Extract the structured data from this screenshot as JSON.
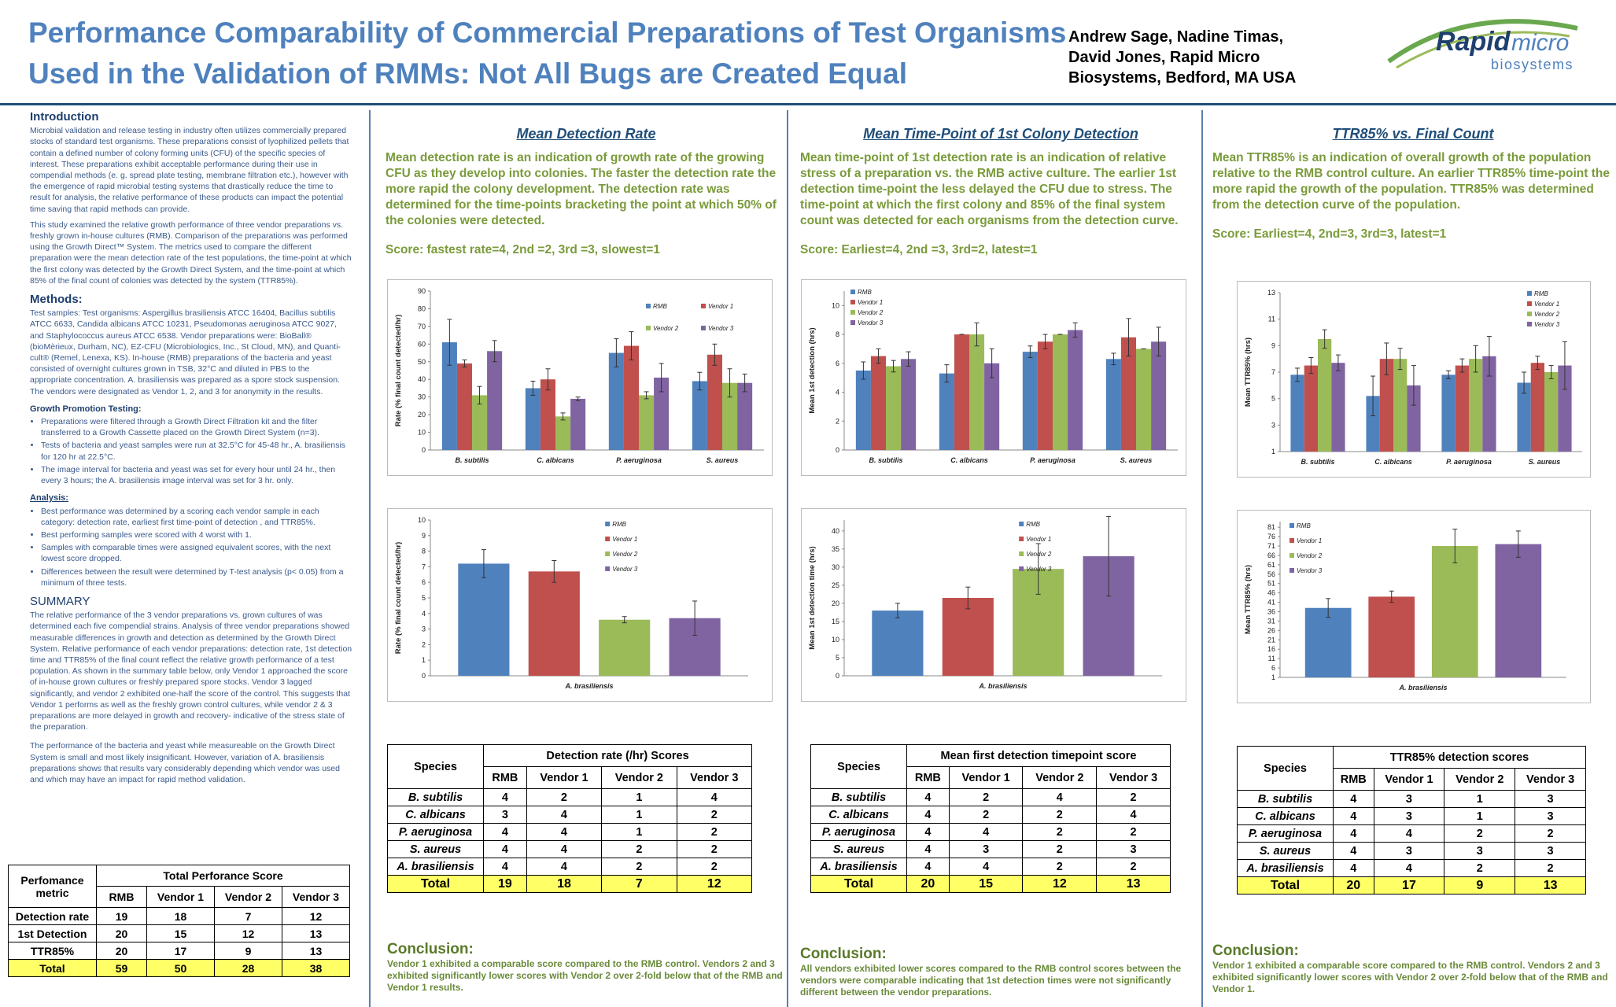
{
  "header": {
    "title_line1": "Performance Comparability of Commercial Preparations of Test Organisms",
    "title_line2": " Used in the Validation of RMMs: Not All Bugs are Created Equal",
    "authors_line1": "Andrew Sage,  Nadine Timas,",
    "authors_line2": "David Jones,  Rapid Micro",
    "authors_line3": "Biosystems, Bedford, MA USA",
    "logo_main": "Rapid",
    "logo_micro": "micro",
    "logo_sub": "biosystems"
  },
  "left": {
    "intro_h": "Introduction",
    "intro_p1": "Microbial validation and release testing in industry often utilizes commercially prepared stocks of standard test organisms. These preparations consist of lyophilized pellets that contain a defined number of colony forming units (CFU) of the specific species of interest. These preparations exhibit acceptable performance during their use in compendial methods (e. g. spread plate testing, membrane filtration etc.), however with the emergence of rapid microbial testing systems that drastically reduce the time to result for analysis, the relative performance of these products can impact the potential time saving that rapid methods can provide.",
    "intro_p2": "This study examined the relative growth performance of three vendor preparations vs. freshly grown in-house cultures (RMB). Comparison of the preparations was performed using the Growth Direct™ System. The metrics used to compare the different preparation were the mean detection rate of the test populations, the time-point at which the first colony was detected by the Growth Direct System, and the time-point at which 85% of the final count of colonies was detected by the system (TTR85%).",
    "methods_h": "Methods:",
    "methods_p": "Test samples: Test organisms: Aspergillus brasiliensis ATCC 16404, Bacillus subtilis ATCC 6633, Candida albicans ATCC 10231, Pseudomonas aeruginosa ATCC 9027, and Staphylococcus aureus ATCC 6538. Vendor preparations were: BioBall® (bioMèrieux, Durham, NC), EZ-CFU (Microbiologics, Inc., St Cloud, MN), and Quanti-cult® (Remel, Lenexa, KS). In-house (RMB) preparations of the bacteria and yeast consisted of overnight cultures grown in TSB, 32°C and diluted in PBS to the appropriate concentration. A. brasiliensis was prepared as a spore stock suspension. The vendors were designated as Vendor 1, 2, and 3 for anonymity in the results.",
    "growth_h": "Growth Promotion Testing:",
    "growth_items": [
      "Preparations were filtered through a Growth Direct Filtration kit and the filter transferred to a Growth Cassette placed on the Growth Direct System (n=3).",
      "Tests of bacteria and yeast samples were run at 32.5°C for 45-48 hr., A. brasiliensis for 120 hr at  22.5°C.",
      "The image interval for bacteria and yeast was set for every hour until  24 hr., then every 3 hours; the A. brasiliensis image interval was set  for 3 hr. only."
    ],
    "analysis_h": "Analysis:",
    "analysis_items": [
      "Best performance was determined by a scoring each vendor sample in each category: detection rate, earliest  first time-point of detection , and TTR85%.",
      "Best performing samples were scored with 4 worst with 1.",
      "Samples with comparable times were assigned equivalent scores, with the next lowest score dropped.",
      "Differences between the result were determined by T-test analysis (p< 0.05) from a minimum of three tests."
    ],
    "summary_h": "SUMMARY",
    "summary_p1": "The relative performance of the 3 vendor preparations vs. grown cultures of was determined each five compendial strains.  Analysis of three vendor preparations showed measurable differences in growth and detection as determined by the Growth Direct System. Relative performance of each vendor preparations: detection rate,  1st detection time and TTR85% of the final count reflect the relative growth performance of a test population. As shown in the summary table below, only Vendor 1 approached the score of  in-house grown cultures or freshly prepared spore stocks. Vendor 3 lagged significantly, and vendor 2 exhibited one-half the score of the control. This  suggests that  Vendor 1 performs as well as the freshly grown control cultures, while vendor 2 & 3 preparations are more delayed in growth and recovery- indicative of the stress state of the preparation.",
    "summary_p2": "The performance of the bacteria and yeast while measureable on the Growth Direct System is small and most likely  insignificant. However, variation of A. brasiliensis preparations shows that  results vary considerably depending which vendor was used and which may have an impact for rapid method  validation."
  },
  "summary_table": {
    "h1": "Perfomance",
    "h2": "metric",
    "title": "Total Perforance Score",
    "cols": [
      "RMB",
      "Vendor 1",
      "Vendor 2",
      "Vendor 3"
    ],
    "rows": [
      [
        "Detection rate",
        "19",
        "18",
        "7",
        "12"
      ],
      [
        "1st Detection",
        "20",
        "15",
        "12",
        "13"
      ],
      [
        "TTR85%",
        "20",
        "17",
        "9",
        "13"
      ]
    ],
    "total": [
      "Total",
      "59",
      "50",
      "28",
      "38"
    ]
  },
  "colors": {
    "RMB": "#4f81bd",
    "Vendor 1": "#c0504d",
    "Vendor 2": "#9bbb59",
    "Vendor 3": "#8064a2"
  },
  "legend": [
    "RMB",
    "Vendor 1",
    "Vendor 2",
    "Vendor 3"
  ],
  "col1": {
    "heading": "Mean Detection Rate",
    "desc": "Mean detection rate is an indication of growth rate of the growing CFU as they develop into colonies. The faster the detection rate the more rapid the colony development. The detection rate was determined for the time-points bracketing the point at which 50% of the colonies were detected.",
    "score": "Score: fastest rate=4, 2nd =2, 3rd =3, slowest=1",
    "table_title": "Detection rate (/hr) Scores",
    "conclusion_h": "Conclusion:",
    "conclusion": "Vendor 1 exhibited a comparable score compared to the RMB control. Vendors 2 and 3 exhibited significantly lower scores with Vendor 2 over 2-fold below that of the RMB and Vendor 1 results."
  },
  "col2": {
    "heading": "Mean Time-Point of 1st Colony Detection",
    "desc": "Mean time-point of 1st detection rate is an indication of relative stress of a preparation vs. the RMB active culture. The earlier 1st detection time-point the less delayed the CFU due to stress. The time-point at which the first colony and 85% of the final system count was detected for each organisms from the detection curve.",
    "score": "Score: Earliest=4, 2nd =3, 3rd=2, latest=1",
    "table_title": "Mean first detection timepoint score",
    "conclusion_h": "Conclusion:",
    "conclusion": "All vendors exhibited lower scores compared to the RMB control scores between the vendors were comparable  indicating that 1st detection times were not significantly different between the vendor preparations."
  },
  "col3": {
    "heading": "TTR85% vs. Final Count",
    "desc": "Mean TTR85% is an indication of overall growth of the population relative to the RMB control culture. An earlier TTR85%  time-point the more rapid the growth of the population. TTR85%  was determined from the  detection curve of the population.",
    "score": "Score: Earliest=4, 2nd=3, 3rd=3, latest=1",
    "table_title": "TTR85%  detection scores",
    "conclusion_h": "Conclusion:",
    "conclusion": "Vendor 1 exhibited a comparable score compared to the RMB control. Vendors 2 and 3 exhibited significantly lower scores with Vendor 2 over 2-fold below that of the RMB and Vendor 1."
  },
  "score_tables": [
    {
      "species_h": "Species",
      "cols": [
        "RMB",
        "Vendor 1",
        "Vendor 2",
        "Vendor 3"
      ],
      "rows": [
        [
          "B. subtilis",
          "4",
          "2",
          "1",
          "4"
        ],
        [
          "C. albicans",
          "3",
          "4",
          "1",
          "2"
        ],
        [
          "P.  aeruginosa",
          "4",
          "4",
          "1",
          "2"
        ],
        [
          "S. aureus",
          "4",
          "4",
          "2",
          "2"
        ],
        [
          "A. brasiliensis",
          "4",
          "4",
          "2",
          "2"
        ]
      ],
      "total": [
        "Total",
        "19",
        "18",
        "7",
        "12"
      ]
    },
    {
      "species_h": "Species",
      "cols": [
        "RMB",
        "Vendor 1",
        "Vendor 2",
        "Vendor 3"
      ],
      "rows": [
        [
          "B. subtilis",
          "4",
          "2",
          "4",
          "2"
        ],
        [
          "C. albicans",
          "4",
          "2",
          "2",
          "4"
        ],
        [
          "P.  aeruginosa",
          "4",
          "4",
          "2",
          "2"
        ],
        [
          "S. aureus",
          "4",
          "3",
          "2",
          "3"
        ],
        [
          "A. brasiliensis",
          "4",
          "4",
          "2",
          "2"
        ]
      ],
      "total": [
        "Total",
        "20",
        "15",
        "12",
        "13"
      ]
    },
    {
      "species_h": "Species",
      "cols": [
        "RMB",
        "Vendor 1",
        "Vendor 2",
        "Vendor 3"
      ],
      "rows": [
        [
          "B. subtilis",
          "4",
          "3",
          "1",
          "3"
        ],
        [
          "C. albicans",
          "4",
          "3",
          "1",
          "3"
        ],
        [
          "P. aeruginosa",
          "4",
          "4",
          "2",
          "2"
        ],
        [
          "S. aureus",
          "4",
          "3",
          "3",
          "3"
        ],
        [
          "A. brasiliensis",
          "4",
          "4",
          "2",
          "2"
        ]
      ],
      "total": [
        "Total",
        "20",
        "17",
        "9",
        "13"
      ]
    }
  ],
  "chart_data": [
    {
      "type": "bar",
      "ylabel": "Rate (% final count detected/hr)",
      "categories": [
        "B. subtilis",
        "C. albicans",
        "P. aeruginosa",
        "S. aureus"
      ],
      "ylim": [
        0,
        90
      ],
      "yticks": [
        0,
        10,
        20,
        30,
        40,
        50,
        60,
        70,
        80,
        90
      ],
      "legend_layout": "grid",
      "series": [
        {
          "name": "RMB",
          "values": [
            61,
            35,
            55,
            39
          ],
          "err": [
            13,
            4,
            8,
            5
          ]
        },
        {
          "name": "Vendor 1",
          "values": [
            49,
            40,
            59,
            54
          ],
          "err": [
            2,
            6,
            8,
            6
          ]
        },
        {
          "name": "Vendor 2",
          "values": [
            31,
            19,
            31,
            38
          ],
          "err": [
            5,
            2,
            2,
            8
          ]
        },
        {
          "name": "Vendor 3",
          "values": [
            56,
            29,
            41,
            38
          ],
          "err": [
            6,
            1,
            8,
            5
          ]
        }
      ]
    },
    {
      "type": "bar",
      "ylabel": "Mean 1st detection (hrs)",
      "categories": [
        "B. subtilis",
        "C. albicans",
        "P. aeruginosa",
        "S. aureus"
      ],
      "ylim": [
        0,
        11
      ],
      "yticks": [
        0,
        2,
        4,
        6,
        8,
        10
      ],
      "legend_layout": "list",
      "series": [
        {
          "name": "RMB",
          "values": [
            5.5,
            5.3,
            6.8,
            6.3
          ],
          "err": [
            0.6,
            0.6,
            0.4,
            0.4
          ]
        },
        {
          "name": "Vendor 1",
          "values": [
            6.5,
            8,
            7.5,
            7.8
          ],
          "err": [
            0.5,
            0,
            0.5,
            1.3
          ]
        },
        {
          "name": "Vendor 2",
          "values": [
            5.8,
            8,
            8,
            7
          ],
          "err": [
            0.4,
            0.8,
            0,
            0
          ]
        },
        {
          "name": "Vendor 3",
          "values": [
            6.3,
            6,
            8.3,
            7.5
          ],
          "err": [
            0.5,
            1,
            0.5,
            1
          ]
        }
      ]
    },
    {
      "type": "bar",
      "ylabel": "Mean TTR85% (hrs)",
      "categories": [
        "B. subtilis",
        "C. albicans",
        "P. aeruginosa",
        "S. aureus"
      ],
      "ylim": [
        1,
        13
      ],
      "yticks": [
        1,
        3,
        5,
        7,
        9,
        11,
        13
      ],
      "legend_layout": "list",
      "series": [
        {
          "name": "RMB",
          "values": [
            6.8,
            5.2,
            6.8,
            6.2
          ],
          "err": [
            0.5,
            1.5,
            0.3,
            0.8
          ]
        },
        {
          "name": "Vendor 1",
          "values": [
            7.5,
            8,
            7.5,
            7.7
          ],
          "err": [
            0.6,
            1.2,
            0.5,
            0.5
          ]
        },
        {
          "name": "Vendor 2",
          "values": [
            9.5,
            8,
            8,
            7
          ],
          "err": [
            0.7,
            0.8,
            1,
            0.5
          ]
        },
        {
          "name": "Vendor 3",
          "values": [
            7.7,
            6,
            8.2,
            7.5
          ],
          "err": [
            0.6,
            1.5,
            1.5,
            1.8
          ]
        }
      ]
    },
    {
      "type": "bar",
      "ylabel": "Rate (% final count detected/hr)",
      "categories": [
        "A. brasiliensis"
      ],
      "ylim": [
        0,
        10
      ],
      "yticks": [
        0,
        1,
        2,
        3,
        4,
        5,
        6,
        7,
        8,
        9,
        10
      ],
      "legend_layout": "list",
      "series": [
        {
          "name": "RMB",
          "values": [
            7.2
          ],
          "err": [
            0.9
          ]
        },
        {
          "name": "Vendor 1",
          "values": [
            6.7
          ],
          "err": [
            0.7
          ]
        },
        {
          "name": "Vendor 2",
          "values": [
            3.6
          ],
          "err": [
            0.2
          ]
        },
        {
          "name": "Vendor 3",
          "values": [
            3.7
          ],
          "err": [
            1.1
          ]
        }
      ]
    },
    {
      "type": "bar",
      "ylabel": "Mean 1st detection time (hrs)",
      "categories": [
        "A. brasiliensis"
      ],
      "ylim": [
        0,
        43
      ],
      "yticks": [
        0,
        5,
        10,
        15,
        20,
        25,
        30,
        35,
        40
      ],
      "legend_layout": "list",
      "series": [
        {
          "name": "RMB",
          "values": [
            18
          ],
          "err": [
            2
          ]
        },
        {
          "name": "Vendor 1",
          "values": [
            21.5
          ],
          "err": [
            3
          ]
        },
        {
          "name": "Vendor 2",
          "values": [
            29.5
          ],
          "err": [
            7
          ]
        },
        {
          "name": "Vendor 3",
          "values": [
            33
          ],
          "err": [
            11
          ]
        }
      ]
    },
    {
      "type": "bar",
      "ylabel": "Mean TTR85% (hrs)",
      "categories": [
        "A. brasiliensis"
      ],
      "ylim": [
        1,
        84
      ],
      "yticks": [
        1,
        6,
        11,
        16,
        21,
        26,
        31,
        36,
        41,
        46,
        51,
        56,
        61,
        66,
        71,
        76,
        81
      ],
      "legend_layout": "list",
      "series": [
        {
          "name": "RMB",
          "values": [
            38
          ],
          "err": [
            5
          ]
        },
        {
          "name": "Vendor 1",
          "values": [
            44
          ],
          "err": [
            3
          ]
        },
        {
          "name": "Vendor 2",
          "values": [
            71
          ],
          "err": [
            9
          ]
        },
        {
          "name": "Vendor 3",
          "values": [
            72
          ],
          "err": [
            7
          ]
        }
      ]
    }
  ]
}
